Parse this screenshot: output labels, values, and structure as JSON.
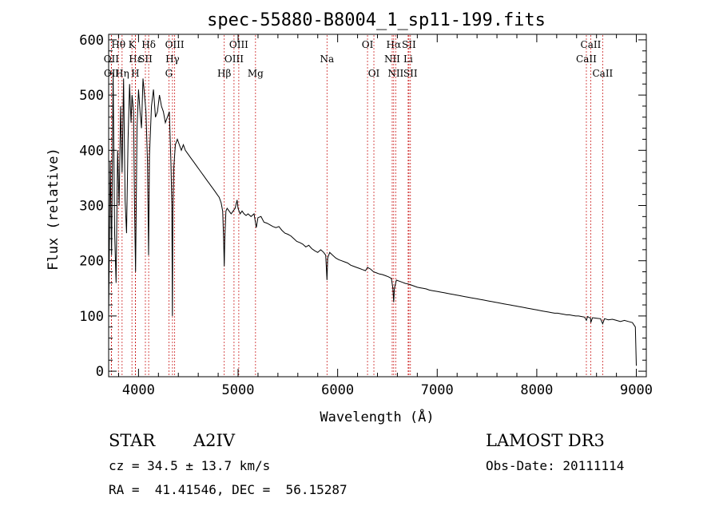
{
  "chart_data": {
    "type": "line",
    "title": "spec-55880-B8004_1_sp11-199.fits",
    "xlabel": "Wavelength (Å)",
    "ylabel": "Flux (relative)",
    "xlim": [
      3700,
      9100
    ],
    "ylim": [
      -10,
      610
    ],
    "xticks": [
      4000,
      5000,
      6000,
      7000,
      8000,
      9000
    ],
    "yticks": [
      0,
      100,
      200,
      300,
      400,
      500,
      600
    ],
    "series": [
      {
        "name": "flux",
        "points": [
          [
            3700,
            100
          ],
          [
            3715,
            380
          ],
          [
            3730,
            210
          ],
          [
            3745,
            540
          ],
          [
            3760,
            250
          ],
          [
            3775,
            160
          ],
          [
            3790,
            400
          ],
          [
            3805,
            300
          ],
          [
            3820,
            480
          ],
          [
            3835,
            360
          ],
          [
            3850,
            530
          ],
          [
            3865,
            310
          ],
          [
            3880,
            250
          ],
          [
            3895,
            420
          ],
          [
            3910,
            520
          ],
          [
            3925,
            450
          ],
          [
            3935,
            500
          ],
          [
            3950,
            470
          ],
          [
            3960,
            300
          ],
          [
            3970,
            180
          ],
          [
            3985,
            440
          ],
          [
            4000,
            510
          ],
          [
            4015,
            470
          ],
          [
            4030,
            440
          ],
          [
            4045,
            530
          ],
          [
            4060,
            500
          ],
          [
            4075,
            470
          ],
          [
            4090,
            380
          ],
          [
            4101,
            210
          ],
          [
            4110,
            390
          ],
          [
            4130,
            480
          ],
          [
            4150,
            510
          ],
          [
            4170,
            460
          ],
          [
            4190,
            470
          ],
          [
            4210,
            500
          ],
          [
            4230,
            480
          ],
          [
            4250,
            470
          ],
          [
            4270,
            450
          ],
          [
            4290,
            460
          ],
          [
            4310,
            470
          ],
          [
            4325,
            380
          ],
          [
            4335,
            300
          ],
          [
            4340,
            100
          ],
          [
            4345,
            290
          ],
          [
            4355,
            370
          ],
          [
            4370,
            410
          ],
          [
            4390,
            420
          ],
          [
            4410,
            410
          ],
          [
            4430,
            400
          ],
          [
            4450,
            410
          ],
          [
            4470,
            400
          ],
          [
            4490,
            395
          ],
          [
            4510,
            390
          ],
          [
            4530,
            385
          ],
          [
            4550,
            380
          ],
          [
            4570,
            375
          ],
          [
            4590,
            370
          ],
          [
            4610,
            365
          ],
          [
            4630,
            360
          ],
          [
            4650,
            355
          ],
          [
            4670,
            350
          ],
          [
            4690,
            345
          ],
          [
            4710,
            340
          ],
          [
            4730,
            335
          ],
          [
            4750,
            330
          ],
          [
            4770,
            325
          ],
          [
            4790,
            320
          ],
          [
            4810,
            315
          ],
          [
            4830,
            305
          ],
          [
            4845,
            290
          ],
          [
            4855,
            240
          ],
          [
            4861,
            190
          ],
          [
            4867,
            240
          ],
          [
            4878,
            290
          ],
          [
            4890,
            295
          ],
          [
            4910,
            290
          ],
          [
            4930,
            285
          ],
          [
            4950,
            290
          ],
          [
            4970,
            295
          ],
          [
            4990,
            310
          ],
          [
            5000,
            295
          ],
          [
            5020,
            285
          ],
          [
            5040,
            290
          ],
          [
            5060,
            285
          ],
          [
            5080,
            282
          ],
          [
            5100,
            285
          ],
          [
            5130,
            280
          ],
          [
            5160,
            285
          ],
          [
            5183,
            260
          ],
          [
            5200,
            278
          ],
          [
            5230,
            280
          ],
          [
            5260,
            270
          ],
          [
            5290,
            268
          ],
          [
            5320,
            265
          ],
          [
            5350,
            262
          ],
          [
            5380,
            260
          ],
          [
            5410,
            262
          ],
          [
            5440,
            255
          ],
          [
            5470,
            250
          ],
          [
            5500,
            248
          ],
          [
            5530,
            245
          ],
          [
            5560,
            240
          ],
          [
            5590,
            235
          ],
          [
            5620,
            233
          ],
          [
            5650,
            230
          ],
          [
            5680,
            225
          ],
          [
            5710,
            228
          ],
          [
            5740,
            222
          ],
          [
            5770,
            218
          ],
          [
            5800,
            215
          ],
          [
            5830,
            220
          ],
          [
            5860,
            215
          ],
          [
            5880,
            210
          ],
          [
            5893,
            165
          ],
          [
            5900,
            205
          ],
          [
            5920,
            215
          ],
          [
            5950,
            210
          ],
          [
            5980,
            205
          ],
          [
            6010,
            202
          ],
          [
            6040,
            200
          ],
          [
            6070,
            198
          ],
          [
            6100,
            196
          ],
          [
            6130,
            192
          ],
          [
            6160,
            190
          ],
          [
            6190,
            188
          ],
          [
            6220,
            186
          ],
          [
            6250,
            184
          ],
          [
            6280,
            182
          ],
          [
            6300,
            188
          ],
          [
            6330,
            185
          ],
          [
            6360,
            180
          ],
          [
            6390,
            178
          ],
          [
            6420,
            176
          ],
          [
            6450,
            175
          ],
          [
            6480,
            173
          ],
          [
            6510,
            171
          ],
          [
            6540,
            168
          ],
          [
            6555,
            150
          ],
          [
            6563,
            125
          ],
          [
            6570,
            150
          ],
          [
            6590,
            165
          ],
          [
            6620,
            163
          ],
          [
            6650,
            161
          ],
          [
            6680,
            159
          ],
          [
            6710,
            158
          ],
          [
            6740,
            156
          ],
          [
            6770,
            154
          ],
          [
            6800,
            152
          ],
          [
            6830,
            151
          ],
          [
            6860,
            150
          ],
          [
            6890,
            149
          ],
          [
            6920,
            147
          ],
          [
            6950,
            146
          ],
          [
            6980,
            145
          ],
          [
            7010,
            144
          ],
          [
            7040,
            143
          ],
          [
            7070,
            142
          ],
          [
            7100,
            141
          ],
          [
            7130,
            140
          ],
          [
            7160,
            139
          ],
          [
            7190,
            138
          ],
          [
            7220,
            137
          ],
          [
            7250,
            136
          ],
          [
            7280,
            135
          ],
          [
            7310,
            134
          ],
          [
            7340,
            133
          ],
          [
            7370,
            132
          ],
          [
            7400,
            131
          ],
          [
            7430,
            130
          ],
          [
            7460,
            129
          ],
          [
            7490,
            128
          ],
          [
            7520,
            127
          ],
          [
            7550,
            126
          ],
          [
            7580,
            125
          ],
          [
            7610,
            124
          ],
          [
            7640,
            123
          ],
          [
            7670,
            122
          ],
          [
            7700,
            121
          ],
          [
            7730,
            120
          ],
          [
            7760,
            119
          ],
          [
            7790,
            118
          ],
          [
            7820,
            117
          ],
          [
            7850,
            116
          ],
          [
            7880,
            115
          ],
          [
            7910,
            114
          ],
          [
            7940,
            113
          ],
          [
            7970,
            112
          ],
          [
            8000,
            111
          ],
          [
            8030,
            110
          ],
          [
            8060,
            109
          ],
          [
            8090,
            108
          ],
          [
            8120,
            107
          ],
          [
            8150,
            106
          ],
          [
            8180,
            105
          ],
          [
            8210,
            105
          ],
          [
            8240,
            104
          ],
          [
            8270,
            103
          ],
          [
            8300,
            102
          ],
          [
            8330,
            102
          ],
          [
            8360,
            101
          ],
          [
            8390,
            100
          ],
          [
            8420,
            100
          ],
          [
            8450,
            99
          ],
          [
            8480,
            98
          ],
          [
            8498,
            92
          ],
          [
            8510,
            99
          ],
          [
            8540,
            96
          ],
          [
            8542,
            88
          ],
          [
            8560,
            97
          ],
          [
            8600,
            96
          ],
          [
            8640,
            95
          ],
          [
            8662,
            86
          ],
          [
            8680,
            95
          ],
          [
            8720,
            93
          ],
          [
            8760,
            94
          ],
          [
            8800,
            92
          ],
          [
            8840,
            90
          ],
          [
            8880,
            92
          ],
          [
            8920,
            90
          ],
          [
            8960,
            88
          ],
          [
            8990,
            80
          ],
          [
            9000,
            10
          ]
        ]
      }
    ],
    "lines": [
      {
        "label": "Hθ",
        "x": 3798,
        "row": 0
      },
      {
        "label": "OII",
        "x": 3727,
        "row": 1
      },
      {
        "label": "OII",
        "x": 3729,
        "row": 2
      },
      {
        "label": "Hη",
        "x": 3835,
        "row": 2
      },
      {
        "label": "K",
        "x": 3934,
        "row": 0
      },
      {
        "label": "Hε",
        "x": 3970,
        "row": 1
      },
      {
        "label": "SII",
        "x": 4069,
        "row": 1
      },
      {
        "label": "H",
        "x": 3968,
        "row": 2
      },
      {
        "label": "Hδ",
        "x": 4102,
        "row": 0
      },
      {
        "label": "OIII",
        "x": 4363,
        "row": 0
      },
      {
        "label": "Hγ",
        "x": 4341,
        "row": 1
      },
      {
        "label": "G",
        "x": 4305,
        "row": 2
      },
      {
        "label": "Hβ",
        "x": 4861,
        "row": 2
      },
      {
        "label": "OIII",
        "x": 5007,
        "row": 0
      },
      {
        "label": "OIII",
        "x": 4959,
        "row": 1
      },
      {
        "label": "Mg",
        "x": 5175,
        "row": 2
      },
      {
        "label": "Na",
        "x": 5893,
        "row": 1
      },
      {
        "label": "OI",
        "x": 6300,
        "row": 0
      },
      {
        "label": "OI",
        "x": 6364,
        "row": 2
      },
      {
        "label": "Hα",
        "x": 6563,
        "row": 0
      },
      {
        "label": "SII",
        "x": 6716,
        "row": 0
      },
      {
        "label": "NII",
        "x": 6548,
        "row": 1
      },
      {
        "label": "Li",
        "x": 6708,
        "row": 1
      },
      {
        "label": "NII",
        "x": 6583,
        "row": 2
      },
      {
        "label": "SII",
        "x": 6731,
        "row": 2
      },
      {
        "label": "CaII",
        "x": 8542,
        "row": 0
      },
      {
        "label": "CaII",
        "x": 8498,
        "row": 1
      },
      {
        "label": "CaII",
        "x": 8662,
        "row": 2
      }
    ]
  },
  "info": {
    "class": "STAR",
    "subclass": "A2IV",
    "survey": "LAMOST DR3",
    "cz": "cz = 34.5 ± 13.7 km/s",
    "obsdate": "Obs-Date: 20111114",
    "coords": "RA =  41.41546, DEC =  56.15287"
  },
  "colors": {
    "line": "#000000",
    "marker": "#cc2222"
  }
}
